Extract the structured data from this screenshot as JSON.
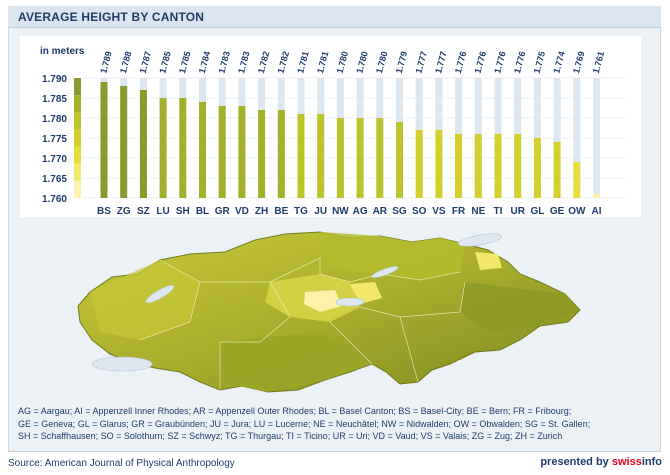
{
  "header": {
    "title": "AVERAGE HEIGHT BY CANTON"
  },
  "chart_data": {
    "type": "bar",
    "title": "AVERAGE HEIGHT BY CANTON",
    "ylabel": "in meters",
    "xlabel": "",
    "ylim": [
      1.76,
      1.79
    ],
    "yticks": [
      "1.790",
      "1.785",
      "1.780",
      "1.775",
      "1.770",
      "1.765",
      "1.760"
    ],
    "categories": [
      "BS",
      "ZG",
      "SZ",
      "LU",
      "SH",
      "BL",
      "GR",
      "VD",
      "ZH",
      "BE",
      "TG",
      "JU",
      "NW",
      "AG",
      "AR",
      "SG",
      "SO",
      "VS",
      "FR",
      "NE",
      "TI",
      "UR",
      "GL",
      "GE",
      "OW",
      "AI"
    ],
    "values": [
      1.789,
      1.788,
      1.787,
      1.785,
      1.785,
      1.784,
      1.783,
      1.783,
      1.782,
      1.782,
      1.781,
      1.781,
      1.78,
      1.78,
      1.78,
      1.779,
      1.777,
      1.777,
      1.776,
      1.776,
      1.776,
      1.776,
      1.775,
      1.774,
      1.769,
      1.761
    ],
    "value_labels": [
      "1.789",
      "1.788",
      "1.787",
      "1.785",
      "1.785",
      "1.784",
      "1.783",
      "1.783",
      "1.782",
      "1.782",
      "1.781",
      "1.781",
      "1.780",
      "1.780",
      "1.780",
      "1.779",
      "1.777",
      "1.777",
      "1.776",
      "1.776",
      "1.776",
      "1.776",
      "1.775",
      "1.774",
      "1.769",
      "1.761"
    ],
    "grid": true,
    "colors": {
      "background_column": "#dde7f0",
      "scale": [
        "#8a9a2a",
        "#a3b02a",
        "#bcc42c",
        "#d3d02e",
        "#e6de3a",
        "#f4ea6e",
        "#fbf3ae"
      ],
      "label": "#1f3c6a"
    }
  },
  "legend": {
    "lines": [
      "AG = Aargau; AI = Appenzell Inner Rhodes; AR = Appenzell Outer Rhodes; BL = Basel Canton; BS = Basel-City; BE = Bern; FR = Fribourg;",
      "GE = Geneva; GL = Glarus; GR = Graubünden; JU = Jura; LU = Lucerne; NE = Neuchâtel; NW = Nidwalden; OW = Obwalden; SG = St. Gallen;",
      "SH = Schaffhausen; SO = Solothurn; SZ = Schwyz; TG = Thurgau; TI = Ticino; UR = Uri; VD = Vaud; VS = Valais; ZG = Zug; ZH = Zurich"
    ]
  },
  "footer": {
    "source": "Source: American Journal of Physical Anthropology",
    "presented_by": "presented by",
    "brand_swiss": "swiss",
    "brand_info": "info"
  }
}
